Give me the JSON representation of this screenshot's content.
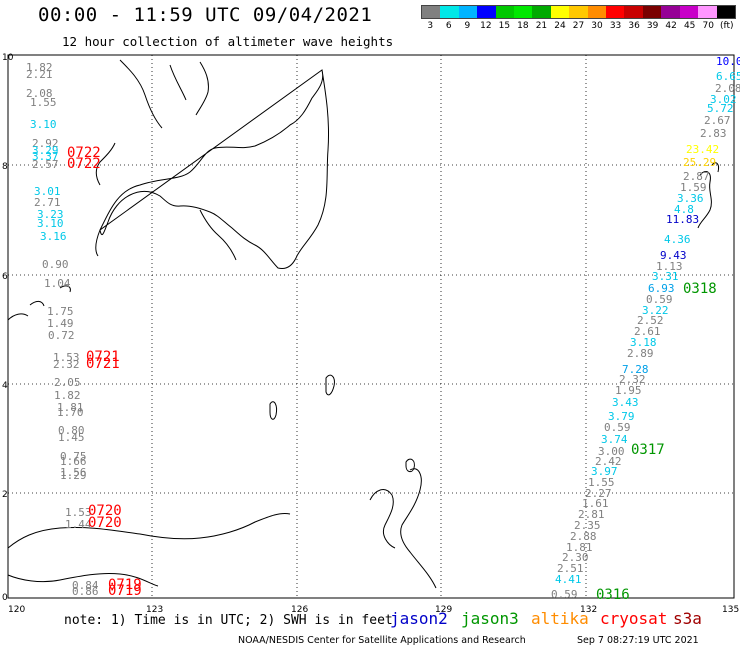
{
  "header": {
    "title": "00:00 - 11:59 UTC 09/04/2021",
    "subtitle": "12 hour collection of altimeter wave heights"
  },
  "colorbar": {
    "colors": [
      "#808080",
      "#00e8e8",
      "#00b4ff",
      "#0000ff",
      "#00c800",
      "#00e800",
      "#00aa00",
      "#ffff00",
      "#ffc800",
      "#ff8c00",
      "#ff0000",
      "#c80000",
      "#7a0000",
      "#960096",
      "#c800c8",
      "#ff96ff",
      "#000000"
    ],
    "labels": [
      "3",
      "6",
      "9",
      "12",
      "15",
      "18",
      "21",
      "24",
      "27",
      "30",
      "33",
      "36",
      "39",
      "42",
      "45",
      "70",
      "(ft)"
    ]
  },
  "axes": {
    "lon_labels": [
      "120",
      "123",
      "126",
      "129",
      "132",
      "135"
    ],
    "lat_labels": [
      "10",
      "8",
      "6",
      "4",
      "2",
      "0"
    ]
  },
  "swh_west_track": [
    {
      "v": "1.82",
      "c": "#808080"
    },
    {
      "v": "2.21",
      "c": "#808080"
    },
    {
      "v": "2.08",
      "c": "#808080"
    },
    {
      "v": "1.55",
      "c": "#808080"
    },
    {
      "v": "3.10",
      "c": "#00c8e8"
    },
    {
      "v": "2.92",
      "c": "#808080"
    },
    {
      "v": "3.29",
      "c": "#00c8e8"
    },
    {
      "v": "3.37",
      "c": "#00c8e8"
    },
    {
      "v": "2.57",
      "c": "#808080"
    },
    {
      "v": "3.01",
      "c": "#00c8e8"
    },
    {
      "v": "2.71",
      "c": "#808080"
    },
    {
      "v": "3.23",
      "c": "#00c8e8"
    },
    {
      "v": "3.10",
      "c": "#00c8e8"
    },
    {
      "v": "3.16",
      "c": "#00c8e8"
    },
    {
      "v": "0.90",
      "c": "#808080"
    },
    {
      "v": "1.04",
      "c": "#808080"
    },
    {
      "v": "1.75",
      "c": "#808080"
    },
    {
      "v": "1.49",
      "c": "#808080"
    },
    {
      "v": "0.72",
      "c": "#808080"
    },
    {
      "v": "1.53",
      "c": "#808080"
    },
    {
      "v": "2.32",
      "c": "#808080"
    },
    {
      "v": "2.05",
      "c": "#808080"
    },
    {
      "v": "1.82",
      "c": "#808080"
    },
    {
      "v": "1.81",
      "c": "#808080"
    },
    {
      "v": "1.70",
      "c": "#808080"
    },
    {
      "v": "0.80",
      "c": "#808080"
    },
    {
      "v": "1.45",
      "c": "#808080"
    },
    {
      "v": "0.75",
      "c": "#808080"
    },
    {
      "v": "1.66",
      "c": "#808080"
    },
    {
      "v": "1.56",
      "c": "#808080"
    },
    {
      "v": "1.29",
      "c": "#808080"
    },
    {
      "v": "1.53",
      "c": "#808080"
    },
    {
      "v": "1.44",
      "c": "#808080"
    },
    {
      "v": "0.84",
      "c": "#808080"
    },
    {
      "v": "0.86",
      "c": "#808080"
    }
  ],
  "swh_east_track": [
    {
      "v": "10.0",
      "c": "#0000ff"
    },
    {
      "v": "6.65",
      "c": "#00c8e8"
    },
    {
      "v": "2.08",
      "c": "#808080"
    },
    {
      "v": "3.02",
      "c": "#00c8e8"
    },
    {
      "v": "5.72",
      "c": "#00c8e8"
    },
    {
      "v": "2.67",
      "c": "#808080"
    },
    {
      "v": "2.83",
      "c": "#808080"
    },
    {
      "v": "23.42",
      "c": "#ffff00"
    },
    {
      "v": "25.29",
      "c": "#ffd200"
    },
    {
      "v": "2.87",
      "c": "#808080"
    },
    {
      "v": "1.59",
      "c": "#808080"
    },
    {
      "v": "3.36",
      "c": "#00c8e8"
    },
    {
      "v": "4.8",
      "c": "#00c8e8"
    },
    {
      "v": "11.83",
      "c": "#0000c8"
    },
    {
      "v": "4.36",
      "c": "#00c8e8"
    },
    {
      "v": "9.43",
      "c": "#0000c8"
    },
    {
      "v": "1.13",
      "c": "#808080"
    },
    {
      "v": "3.31",
      "c": "#00c8e8"
    },
    {
      "v": "6.93",
      "c": "#00a0e8"
    },
    {
      "v": "0.59",
      "c": "#808080"
    },
    {
      "v": "3.22",
      "c": "#00c8e8"
    },
    {
      "v": "2.52",
      "c": "#808080"
    },
    {
      "v": "2.61",
      "c": "#808080"
    },
    {
      "v": "3.18",
      "c": "#00c8e8"
    },
    {
      "v": "2.89",
      "c": "#808080"
    },
    {
      "v": "7.28",
      "c": "#00a0e8"
    },
    {
      "v": "2.32",
      "c": "#808080"
    },
    {
      "v": "1.95",
      "c": "#808080"
    },
    {
      "v": "3.43",
      "c": "#00c8e8"
    },
    {
      "v": "3.79",
      "c": "#00c8e8"
    },
    {
      "v": "0.59",
      "c": "#808080"
    },
    {
      "v": "3.74",
      "c": "#00c8e8"
    },
    {
      "v": "3.00",
      "c": "#808080"
    },
    {
      "v": "2.42",
      "c": "#808080"
    },
    {
      "v": "3.97",
      "c": "#00c8e8"
    },
    {
      "v": "1.55",
      "c": "#808080"
    },
    {
      "v": "2.27",
      "c": "#808080"
    },
    {
      "v": "1.61",
      "c": "#808080"
    },
    {
      "v": "2.81",
      "c": "#808080"
    },
    {
      "v": "2.35",
      "c": "#808080"
    },
    {
      "v": "2.88",
      "c": "#808080"
    },
    {
      "v": "1.81",
      "c": "#808080"
    },
    {
      "v": "2.30",
      "c": "#808080"
    },
    {
      "v": "2.51",
      "c": "#808080"
    },
    {
      "v": "4.41",
      "c": "#00c8e8"
    },
    {
      "v": "0.59",
      "c": "#808080"
    }
  ],
  "pass_times": {
    "cryosat": [
      "0722",
      "0722",
      "0721",
      "0721",
      "0720",
      "0720",
      "0719",
      "0719"
    ],
    "jason3": [
      "0318",
      "0317",
      "0316"
    ]
  },
  "legend": {
    "note": "note: 1) Time is in UTC; 2) SWH is in feet",
    "satellites": [
      {
        "name": "jason2",
        "color": "#0000c8"
      },
      {
        "name": "jason3",
        "color": "#009600"
      },
      {
        "name": "altika",
        "color": "#ff8c00"
      },
      {
        "name": "cryosat",
        "color": "#ff0000"
      },
      {
        "name": "s3a",
        "color": "#a00000"
      }
    ]
  },
  "footer": {
    "credit": "NOAA/NESDIS Center for Satellite Applications and Research",
    "timestamp": "Sep  7 08:27:19 UTC 2021"
  }
}
